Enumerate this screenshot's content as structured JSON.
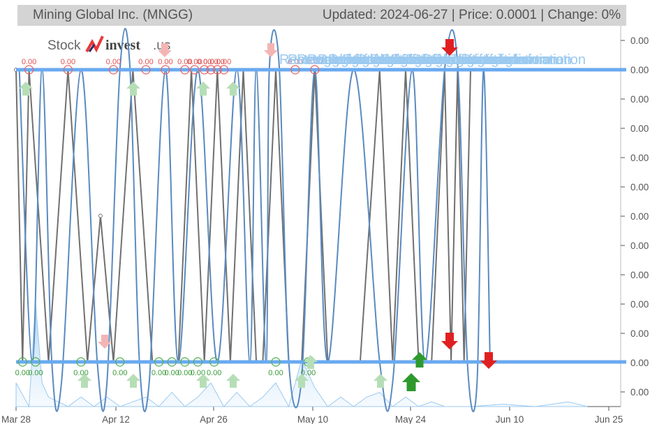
{
  "header": {
    "title": "Mining Global Inc. (MNGG)",
    "status": "Updated: 2024-06-27 | Price: 0.0001 | Change: 0%"
  },
  "logo": {
    "part1": "Stock",
    "part2": "invest",
    "part3": ".us"
  },
  "chart_data": {
    "type": "line",
    "x_tick_labels": [
      "Mar 28",
      "Apr 12",
      "Apr 26",
      "May 10",
      "May 24",
      "Jun 10",
      "Jun 25"
    ],
    "y_tick_labels": [
      "0.00",
      "0.00",
      "0.00",
      "0.00",
      "0.00",
      "0.00",
      "0.00",
      "0.00",
      "0.00",
      "0.00",
      "0.00",
      "0.00",
      "0.00"
    ],
    "y_range_note": "all ticks print 0.00",
    "levels": {
      "resistance": 0.0001,
      "support": 0.0001
    },
    "series": [
      {
        "color": "#707070",
        "points": [
          [
            0,
            1
          ],
          [
            1,
            0
          ],
          [
            2,
            1
          ],
          [
            5,
            0
          ],
          [
            8,
            1
          ],
          [
            11,
            0
          ],
          [
            13,
            0.5
          ],
          [
            15,
            0
          ],
          [
            18,
            1
          ],
          [
            21,
            0
          ],
          [
            23,
            0
          ],
          [
            25,
            0
          ],
          [
            27,
            1
          ],
          [
            29,
            0
          ],
          [
            31,
            1
          ],
          [
            33,
            0
          ],
          [
            35,
            1
          ],
          [
            37,
            0
          ],
          [
            38,
            0
          ],
          [
            40,
            1
          ],
          [
            42,
            0
          ],
          [
            44,
            0
          ],
          [
            46,
            1
          ],
          [
            48,
            0
          ],
          [
            51,
            0
          ],
          [
            53,
            0
          ],
          [
            56,
            1
          ],
          [
            58,
            0
          ],
          [
            60,
            1
          ],
          [
            62,
            0
          ],
          [
            64,
            0
          ],
          [
            66,
            1
          ],
          [
            67,
            0
          ],
          [
            68,
            1
          ],
          [
            69,
            0
          ],
          [
            70,
            1
          ]
        ]
      },
      {
        "color": "#5a8ac0",
        "points": [
          [
            0.5,
            1
          ],
          [
            2.5,
            0
          ],
          [
            4,
            1
          ],
          [
            5.5,
            0
          ],
          [
            7,
            -0.07
          ],
          [
            10,
            1
          ],
          [
            12.5,
            0
          ],
          [
            14,
            -0.07
          ],
          [
            16,
            1
          ],
          [
            17.5,
            1.02
          ],
          [
            19,
            0
          ],
          [
            20.5,
            -0.07
          ],
          [
            23,
            1
          ],
          [
            25,
            0
          ],
          [
            28,
            1
          ],
          [
            31,
            0
          ],
          [
            34,
            1
          ],
          [
            36,
            0
          ],
          [
            37,
            1
          ],
          [
            38.5,
            0
          ],
          [
            39,
            1
          ],
          [
            40.5,
            1.02
          ],
          [
            42,
            0
          ],
          [
            44,
            -0.05
          ],
          [
            46,
            1
          ],
          [
            48,
            0
          ],
          [
            52,
            1
          ],
          [
            56,
            0
          ],
          [
            58,
            -0.07
          ],
          [
            61,
            1
          ],
          [
            63,
            0
          ],
          [
            66,
            1
          ],
          [
            68,
            1.02
          ],
          [
            69.5,
            0
          ],
          [
            71,
            -0.07
          ],
          [
            72,
            1
          ],
          [
            73,
            0
          ]
        ]
      },
      {
        "color": "#9ccaf0",
        "points": [
          [
            0,
            0.05
          ],
          [
            2,
            0
          ],
          [
            3,
            0.22
          ],
          [
            4,
            0.05
          ],
          [
            5,
            0.02
          ],
          [
            8,
            0
          ],
          [
            10,
            0.02
          ],
          [
            12,
            0
          ],
          [
            14,
            0.02
          ],
          [
            16,
            0
          ],
          [
            18,
            0.01
          ],
          [
            20,
            0.02
          ],
          [
            22,
            0
          ],
          [
            24,
            0.03
          ],
          [
            26,
            0
          ],
          [
            28,
            0.02
          ],
          [
            30,
            0.05
          ],
          [
            32,
            0
          ],
          [
            34,
            0.03
          ],
          [
            36,
            0
          ],
          [
            38,
            0.02
          ],
          [
            40,
            0.05
          ],
          [
            42,
            0
          ],
          [
            44,
            0.1
          ],
          [
            46,
            0.04
          ],
          [
            48,
            0
          ],
          [
            50,
            0.02
          ],
          [
            52,
            0
          ],
          [
            54,
            0.02
          ],
          [
            56,
            0.03
          ],
          [
            58,
            0
          ],
          [
            60,
            0.02
          ],
          [
            62,
            0
          ],
          [
            64,
            0.01
          ],
          [
            66,
            0
          ],
          [
            70,
            0
          ],
          [
            75,
            0.005
          ],
          [
            80,
            0
          ],
          [
            85,
            0.01
          ],
          [
            88,
            0
          ]
        ]
      }
    ],
    "markers": {
      "top_labels": [
        {
          "x": 2,
          "text": "0.00"
        },
        {
          "x": 8,
          "text": "0.00"
        },
        {
          "x": 15,
          "text": "0.00"
        },
        {
          "x": 20,
          "text": "0.00"
        },
        {
          "x": 23,
          "text": "0.00"
        },
        {
          "x": 26,
          "text": "0.00"
        },
        {
          "x": 27.5,
          "text": "0.00"
        },
        {
          "x": 29,
          "text": "0.00"
        },
        {
          "x": 30,
          "text": "0.00"
        },
        {
          "x": 31,
          "text": "0.00"
        },
        {
          "x": 32,
          "text": "0.00"
        },
        {
          "x": 43,
          "text": "0.00"
        },
        {
          "x": 46,
          "text": "0.00"
        }
      ],
      "bottom_labels": [
        {
          "x": 1,
          "text": "0.00"
        },
        {
          "x": 3,
          "text": "0.00"
        },
        {
          "x": 10,
          "text": "0.00"
        },
        {
          "x": 16,
          "text": "0.00"
        },
        {
          "x": 22,
          "text": "0.00"
        },
        {
          "x": 24,
          "text": "0.00"
        },
        {
          "x": 26,
          "text": "0.00"
        },
        {
          "x": 28,
          "text": "0.00"
        },
        {
          "x": 30.5,
          "text": "0.00"
        },
        {
          "x": 40,
          "text": "0.00"
        },
        {
          "x": 45,
          "text": "0.00"
        }
      ],
      "pattern_text": "Rectangle formation"
    }
  }
}
